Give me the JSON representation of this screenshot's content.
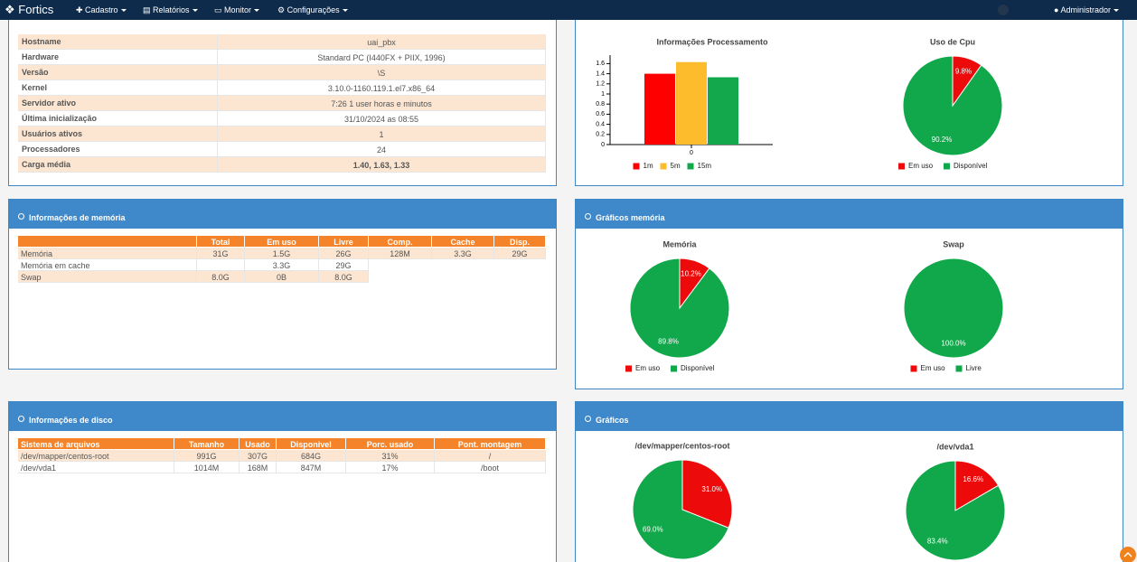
{
  "navbar": {
    "brand": "Fortics",
    "menu": [
      "Cadastro",
      "Relatórios",
      "Monitor",
      "Configurações"
    ],
    "user": "Administrador"
  },
  "system_info": {
    "rows": [
      [
        "Hostname",
        "uai_pbx"
      ],
      [
        "Hardware",
        "Standard PC (I440FX + PIIX, 1996)"
      ],
      [
        "Versão",
        "\\S"
      ],
      [
        "Kernel",
        "3.10.0-1160.119.1.el7.x86_64"
      ],
      [
        "Servidor ativo",
        "7:26 1 user horas e minutos"
      ],
      [
        "Última inicialização",
        "31/10/2024 as 08:55"
      ],
      [
        "Usuários ativos",
        "1"
      ],
      [
        "Processadores",
        "24"
      ],
      [
        "Carga média",
        "1.40, 1.63, 1.33"
      ]
    ]
  },
  "process_charts": {
    "charts": [
      {
        "type": "bar",
        "title": "Informações Processamento",
        "categories": [
          "0"
        ],
        "series": [
          {
            "name": "1m",
            "color": "#ff0000",
            "values": [
              1.4
            ]
          },
          {
            "name": "5m",
            "color": "#fcbc2c",
            "values": [
              1.63
            ]
          },
          {
            "name": "15m",
            "color": "#12a84b",
            "values": [
              1.33
            ]
          }
        ],
        "ylim": [
          0,
          1.75
        ],
        "yticks": [
          0,
          0.2,
          0.4,
          0.6,
          0.8,
          1,
          1.2,
          1.4,
          1.6
        ]
      },
      {
        "type": "pie",
        "title": "Uso de Cpu",
        "categories": [
          "Em uso",
          "Disponível"
        ],
        "values": [
          9.8,
          90.2
        ],
        "value_labels": [
          "9.8%",
          "90.2%"
        ],
        "colors": [
          "#ec0a0a",
          "#10a84a"
        ]
      }
    ]
  },
  "memory_info": {
    "title": "Informações de memória",
    "columns": [
      "Total",
      "Em uso",
      "Livre",
      "Comp.",
      "Cache",
      "Disp."
    ],
    "rows": [
      {
        "name": "Memória",
        "cells": [
          "31G",
          "1.5G",
          "26G",
          "128M",
          "3.3G",
          "29G"
        ]
      },
      {
        "name": "Memória em cache",
        "cells": [
          null,
          "3.3G",
          "29G"
        ]
      },
      {
        "name": "Swap",
        "cells": [
          "8.0G",
          "0B",
          "8.0G"
        ]
      }
    ]
  },
  "memory_charts": {
    "title": "Gráficos memória",
    "charts": [
      {
        "type": "pie",
        "title": "Memória",
        "categories": [
          "Em uso",
          "Disponível"
        ],
        "values": [
          10.2,
          89.8
        ],
        "value_labels": [
          "10.2%",
          "89.8%"
        ],
        "colors": [
          "#ec0a0a",
          "#10a84a"
        ]
      },
      {
        "type": "pie",
        "title": "Swap",
        "categories": [
          "Em uso",
          "Livre"
        ],
        "values": [
          0,
          100
        ],
        "value_labels": [
          null,
          "100.0%"
        ],
        "colors": [
          "#ec0a0a",
          "#10a84a"
        ]
      }
    ]
  },
  "disk_info": {
    "title": "Informações de disco",
    "columns": [
      "Sistema de arquivos",
      "Tamanho",
      "Usado",
      "Disponivel",
      "Porc. usado",
      "Pont. montagem"
    ],
    "rows": [
      [
        "/dev/mapper/centos-root",
        "991G",
        "307G",
        "684G",
        "31%",
        "/"
      ],
      [
        "/dev/vda1",
        "1014M",
        "168M",
        "847M",
        "17%",
        "/boot"
      ]
    ]
  },
  "disk_charts": {
    "title": "Gráficos",
    "charts": [
      {
        "type": "pie",
        "title": "/dev/mapper/centos-root",
        "categories": [
          "Em uso",
          "Disponível"
        ],
        "values": [
          31.0,
          69.0
        ],
        "value_labels": [
          "31.0%",
          "69.0%"
        ],
        "colors": [
          "#ec0a0a",
          "#10a84a"
        ]
      },
      {
        "type": "pie",
        "title": "/dev/vda1",
        "categories": [
          "Em uso",
          "Disponível"
        ],
        "values": [
          16.6,
          83.4
        ],
        "value_labels": [
          "16.6%",
          "83.4%"
        ],
        "colors": [
          "#ec0a0a",
          "#10a84a"
        ]
      }
    ]
  }
}
